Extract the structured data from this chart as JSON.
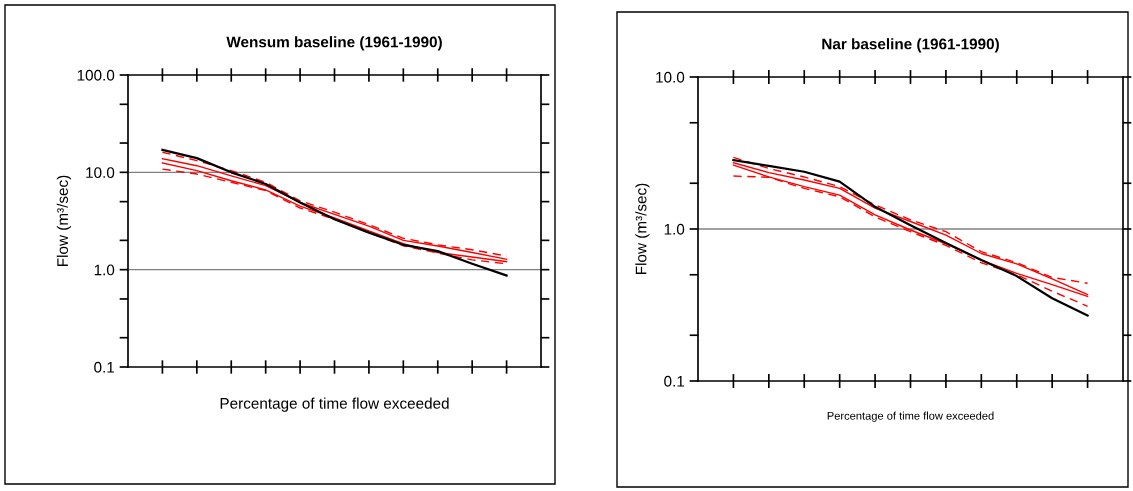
{
  "chart_data": [
    {
      "type": "line",
      "title": "Wensum baseline (1961-1990)",
      "xlabel": "Percentage of time flow exceeded",
      "ylabel": "Flow (m³/sec)",
      "log": "y",
      "tick_labels": "y",
      "categories": [
        null,
        null,
        null,
        null,
        null,
        null,
        null,
        null,
        null,
        null,
        null
      ],
      "ylim": [
        0.1,
        100
      ],
      "yticks": [
        {
          "value": 0.1,
          "label": "0.1"
        },
        {
          "value": 0.2,
          "label": null
        },
        {
          "value": 0.5,
          "label": null
        },
        {
          "value": 1,
          "label": "1.0"
        },
        {
          "value": 2,
          "label": null
        },
        {
          "value": 5,
          "label": null
        },
        {
          "value": 10,
          "label": "10.0"
        },
        {
          "value": 20,
          "label": null
        },
        {
          "value": 50,
          "label": null
        },
        {
          "value": 100,
          "label": "100.0"
        }
      ],
      "ref_lines": [
        {
          "axis": "y",
          "value": 1,
          "color": "#808080"
        },
        {
          "axis": "y",
          "value": 10,
          "color": "#808080"
        }
      ],
      "series": [
        {
          "color": "#ff0000",
          "line_style": "dashed",
          "values": [
            16.1,
            13.2,
            10.4,
            7.9,
            5.1,
            3.9,
            2.9,
            2.1,
            1.8,
            1.6,
            1.38
          ]
        },
        {
          "color": "#ff0000",
          "line_style": "solid",
          "values": [
            13.8,
            11.7,
            9.2,
            7.3,
            4.9,
            3.7,
            2.8,
            2.0,
            1.75,
            1.5,
            1.28
          ]
        },
        {
          "color": "#ff0000",
          "line_style": "solid",
          "values": [
            12.5,
            10.4,
            8.2,
            6.6,
            4.5,
            3.4,
            2.5,
            1.85,
            1.5,
            1.35,
            1.21
          ]
        },
        {
          "color": "#ff0000",
          "line_style": "dashed",
          "values": [
            10.8,
            9.6,
            7.9,
            6.5,
            4.3,
            3.3,
            2.4,
            1.76,
            1.48,
            1.26,
            1.15
          ]
        },
        {
          "color": "#000000",
          "line_style": "solid",
          "values": [
            17,
            14,
            10,
            7.6,
            4.9,
            3.3,
            2.4,
            1.8,
            1.55,
            1.15,
            0.87
          ]
        }
      ]
    },
    {
      "type": "line",
      "title": "Nar baseline (1961-1990)",
      "xlabel": "Percentage of time flow exceeded",
      "ylabel": "Flow (m³/sec)",
      "log": "y",
      "tick_labels": "y",
      "categories": [
        null,
        null,
        null,
        null,
        null,
        null,
        null,
        null,
        null,
        null,
        null
      ],
      "ylim": [
        0.1,
        10
      ],
      "yticks": [
        {
          "value": 0.1,
          "label": "0.1"
        },
        {
          "value": 0.2,
          "label": null
        },
        {
          "value": 0.5,
          "label": null
        },
        {
          "value": 1,
          "label": "1.0"
        },
        {
          "value": 2,
          "label": null
        },
        {
          "value": 5,
          "label": null
        },
        {
          "value": 10,
          "label": "10.0"
        }
      ],
      "ref_lines": [
        {
          "axis": "y",
          "value": 1,
          "color": "#808080"
        }
      ],
      "series": [
        {
          "color": "#ff0000",
          "line_style": "dashed",
          "values": [
            2.96,
            2.5,
            2.2,
            1.9,
            1.44,
            1.15,
            0.96,
            0.71,
            0.6,
            0.48,
            0.44
          ]
        },
        {
          "color": "#ff0000",
          "line_style": "solid",
          "values": [
            2.73,
            2.35,
            2.1,
            1.85,
            1.37,
            1.12,
            0.91,
            0.69,
            0.59,
            0.47,
            0.37
          ]
        },
        {
          "color": "#ff0000",
          "line_style": "solid",
          "values": [
            2.63,
            2.2,
            1.9,
            1.67,
            1.24,
            0.985,
            0.8,
            0.625,
            0.51,
            0.43,
            0.36
          ]
        },
        {
          "color": "#ff0000",
          "line_style": "dashed",
          "values": [
            2.23,
            2.19,
            1.85,
            1.63,
            1.2,
            0.96,
            0.78,
            0.6,
            0.5,
            0.39,
            0.31
          ]
        },
        {
          "color": "#000000",
          "line_style": "solid",
          "values": [
            2.84,
            2.6,
            2.38,
            2.05,
            1.4,
            1.06,
            0.81,
            0.625,
            0.49,
            0.35,
            0.27
          ]
        }
      ]
    }
  ]
}
